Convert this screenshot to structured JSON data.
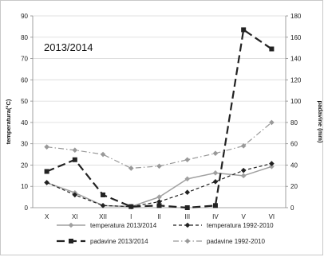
{
  "chart_data": {
    "type": "line",
    "inset_label": "2013/2014",
    "categories": [
      "X",
      "XI",
      "XII",
      "I",
      "II",
      "III",
      "IV",
      "V",
      "VI"
    ],
    "left_axis": {
      "label": "temperatura(°C)",
      "ylim": [
        0,
        90
      ],
      "ticks": [
        0,
        10,
        20,
        30,
        40,
        50,
        60,
        70,
        80,
        90
      ]
    },
    "right_axis": {
      "label": "padavine (mm)",
      "ylim": [
        0,
        180
      ],
      "ticks": [
        0,
        20,
        40,
        60,
        80,
        100,
        120,
        140,
        160,
        180
      ]
    },
    "grid": "horizontal",
    "legend_position": "bottom",
    "series": [
      {
        "name": "temperatura 2013/2014",
        "axis": "left",
        "color": "#a0a0a0",
        "dash": "solid",
        "marker": "diamond",
        "width": 1.5,
        "values": [
          11.7,
          7.0,
          1.0,
          0.5,
          5.0,
          13.5,
          16.3,
          15.0,
          19.3
        ]
      },
      {
        "name": "temperatura 1992-2010",
        "axis": "left",
        "color": "#222222",
        "dash": "4,3",
        "marker": "diamond",
        "width": 1.2,
        "values": [
          11.8,
          6.0,
          1.0,
          0.5,
          2.8,
          7.2,
          12.2,
          17.5,
          20.7
        ]
      },
      {
        "name": "padavine 2013/2014",
        "axis": "right",
        "color": "#222222",
        "dash": "10,5",
        "marker": "square",
        "width": 2.2,
        "values": [
          34,
          45,
          12,
          1,
          2,
          0,
          2,
          167,
          149
        ]
      },
      {
        "name": "padavine 1992-2010",
        "axis": "right",
        "color": "#999999",
        "dash": "7,3,1.5,3",
        "marker": "diamond",
        "width": 1.2,
        "values": [
          57,
          54,
          50,
          37,
          39,
          45,
          51,
          58,
          80
        ]
      }
    ]
  }
}
